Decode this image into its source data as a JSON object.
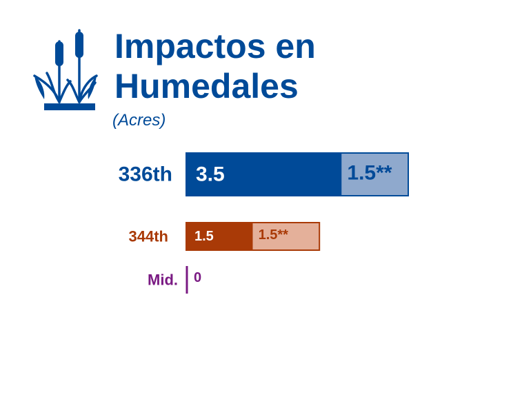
{
  "title_line1": "Impactos en",
  "title_line2": "Humedales",
  "subtitle": "(Acres)",
  "icon": "cattail-reeds-icon",
  "chart_data": {
    "type": "bar",
    "orientation": "horizontal",
    "stacked": true,
    "title": "Impactos en Humedales",
    "subtitle": "(Acres)",
    "categories": [
      "336th",
      "344th",
      "Mid."
    ],
    "series": [
      {
        "values": [
          3.5,
          1.5,
          0
        ],
        "labels": [
          "3.5",
          "1.5",
          "0"
        ]
      },
      {
        "values": [
          1.5,
          1.5,
          0
        ],
        "labels": [
          "1.5**",
          "1.5**",
          ""
        ]
      }
    ],
    "colors": {
      "336th": {
        "main": "#004a98",
        "light": "#8fa9cd"
      },
      "344th": {
        "main": "#a93a07",
        "light": "#e4b09a"
      },
      "Mid.": {
        "main": "#7a1a83",
        "light": "#7a1a83"
      }
    }
  }
}
